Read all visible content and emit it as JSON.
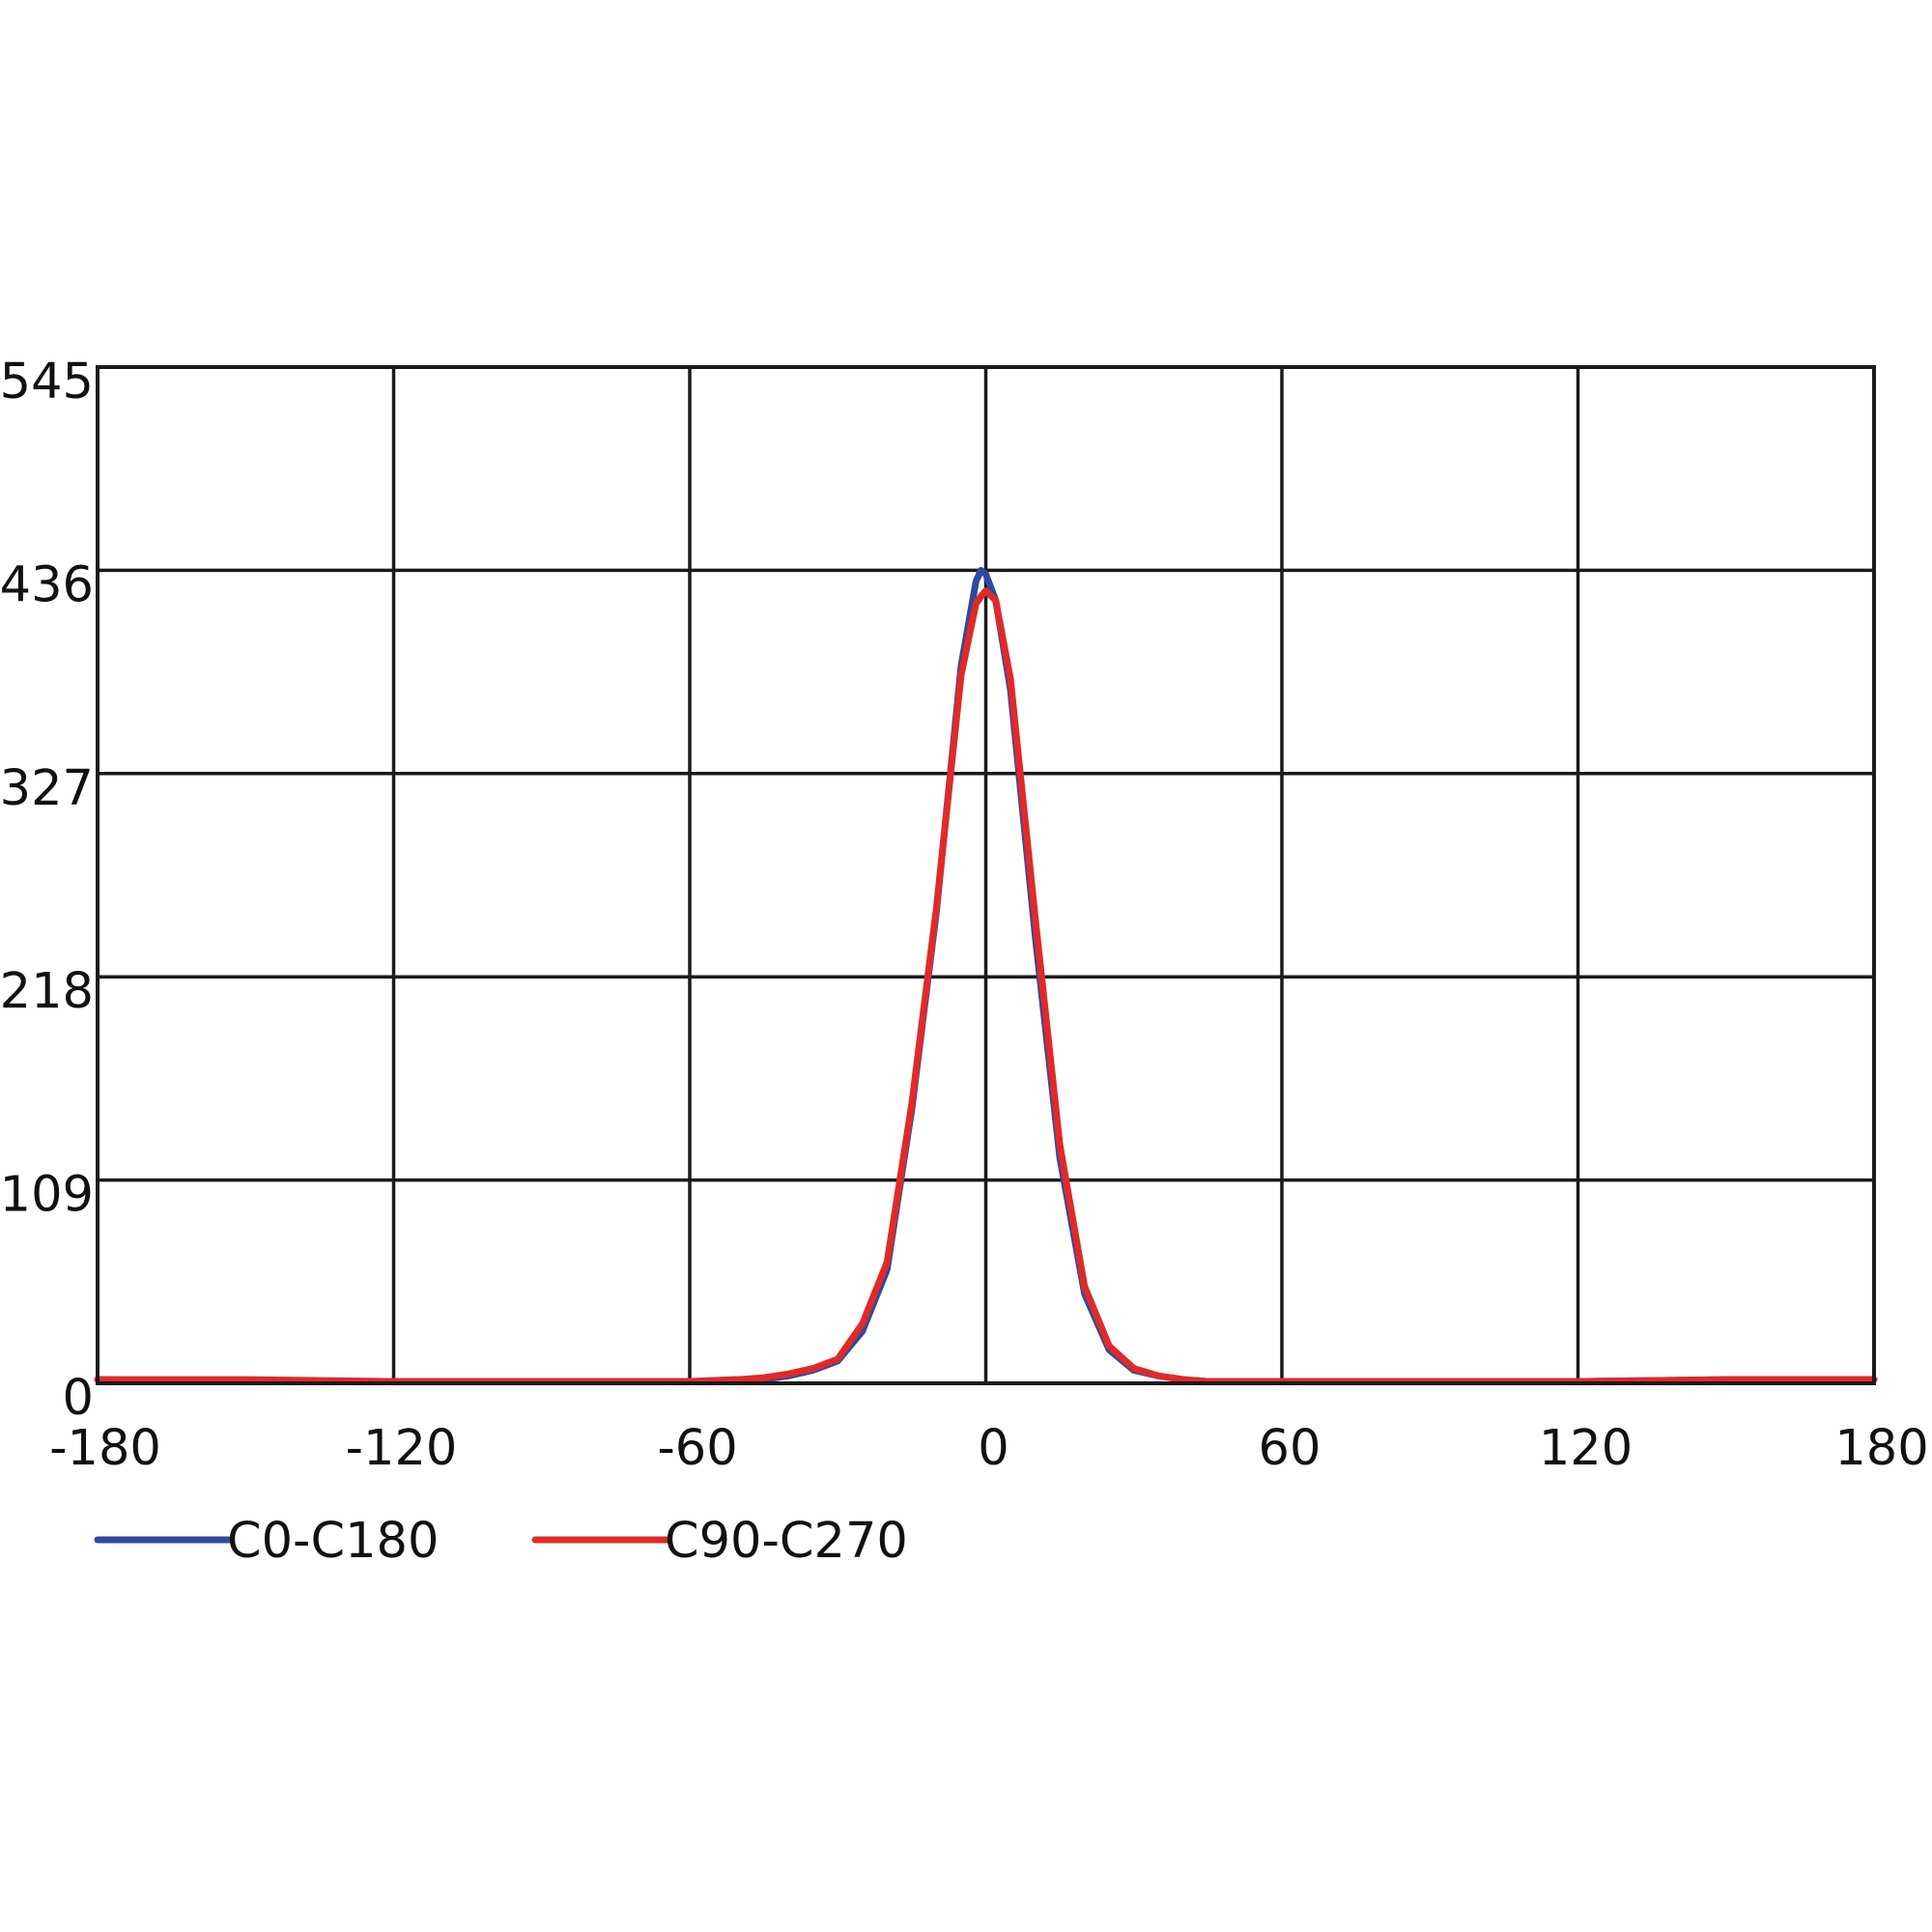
{
  "chart_data": {
    "type": "line",
    "x": [
      -180,
      -150,
      -120,
      -90,
      -60,
      -50,
      -45,
      -40,
      -35,
      -30,
      -25,
      -20,
      -15,
      -10,
      -5,
      -2,
      -1,
      0,
      2,
      5,
      10,
      15,
      20,
      25,
      30,
      35,
      40,
      45,
      50,
      60,
      90,
      120,
      150,
      180
    ],
    "series": [
      {
        "name": "C0-C180",
        "color": "#2e4a9e",
        "values": [
          2,
          1,
          1,
          1,
          1,
          2,
          2,
          4,
          7,
          12,
          28,
          61,
          147,
          253,
          385,
          430,
          436,
          434,
          420,
          372,
          240,
          121,
          48,
          18,
          7,
          4,
          2,
          1,
          1,
          1,
          1,
          1,
          2,
          2
        ]
      },
      {
        "name": "C90-C270",
        "color": "#e02a2a",
        "values": [
          2,
          2,
          1,
          1,
          1,
          2,
          3,
          5,
          8,
          13,
          32,
          65,
          150,
          255,
          380,
          418,
          422,
          425,
          420,
          378,
          250,
          128,
          52,
          20,
          8,
          4,
          2,
          1,
          1,
          1,
          1,
          1,
          2,
          2
        ]
      }
    ],
    "xlim": [
      -180,
      180
    ],
    "xticks": [
      -180,
      -120,
      -60,
      0,
      60,
      120,
      180
    ],
    "ylim": [
      0,
      545
    ],
    "yticks": [
      0,
      109,
      218,
      327,
      436,
      545
    ],
    "grid": true
  }
}
